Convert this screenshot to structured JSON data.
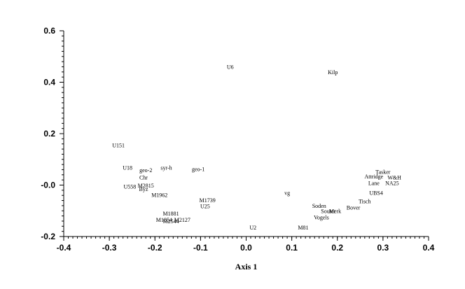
{
  "chart_data": {
    "type": "scatter",
    "title": "",
    "xlabel": "Axis 1",
    "ylabel": "",
    "xlim": [
      -0.4,
      0.4
    ],
    "ylim": [
      -0.2,
      0.6
    ],
    "x_ticks": [
      -0.4,
      -0.3,
      -0.2,
      -0.1,
      0.0,
      0.1,
      0.2,
      0.3,
      0.4
    ],
    "y_ticks": [
      -0.2,
      0.0,
      0.2,
      0.4,
      0.6
    ],
    "x_tick_labels": [
      "-0.4",
      "-0.3",
      "-0.2",
      "-0.1",
      "0.0",
      "0.1",
      "0.2",
      "0.3",
      "0.4"
    ],
    "y_tick_labels": [
      "-0.2",
      "-0.0",
      "0.2",
      "0.4",
      "0.6"
    ],
    "grid": false,
    "points": [
      {
        "label": "U6",
        "x": -0.035,
        "y": 0.46
      },
      {
        "label": "Kilp",
        "x": 0.19,
        "y": 0.44
      },
      {
        "label": "U151",
        "x": -0.28,
        "y": 0.155
      },
      {
        "label": "U18",
        "x": -0.26,
        "y": 0.068
      },
      {
        "label": "geo-2",
        "x": -0.22,
        "y": 0.058
      },
      {
        "label": "syr-h",
        "x": -0.175,
        "y": 0.068
      },
      {
        "label": "geo-1",
        "x": -0.105,
        "y": 0.062
      },
      {
        "label": "Chr",
        "x": -0.225,
        "y": 0.03
      },
      {
        "label": "U558",
        "x": -0.255,
        "y": -0.005
      },
      {
        "label": "M2815",
        "x": -0.22,
        "y": -0.001
      },
      {
        "label": "Byz",
        "x": -0.225,
        "y": -0.015
      },
      {
        "label": "M1962",
        "x": -0.19,
        "y": -0.038
      },
      {
        "label": "vg",
        "x": 0.09,
        "y": -0.03
      },
      {
        "label": "Tasker",
        "x": 0.3,
        "y": 0.052
      },
      {
        "label": "Attridge",
        "x": 0.28,
        "y": 0.034
      },
      {
        "label": "W&H",
        "x": 0.325,
        "y": 0.03
      },
      {
        "label": "Lane",
        "x": 0.28,
        "y": 0.008
      },
      {
        "label": "NA25",
        "x": 0.32,
        "y": 0.008
      },
      {
        "label": "UBS4",
        "x": 0.285,
        "y": -0.03
      },
      {
        "label": "Tisch",
        "x": 0.26,
        "y": -0.063
      },
      {
        "label": "M1739",
        "x": -0.085,
        "y": -0.058
      },
      {
        "label": "U25",
        "x": -0.09,
        "y": -0.082
      },
      {
        "label": "Soden",
        "x": 0.16,
        "y": -0.08
      },
      {
        "label": "Bover",
        "x": 0.235,
        "y": -0.087
      },
      {
        "label": "Souter",
        "x": 0.18,
        "y": -0.1
      },
      {
        "label": "Merk",
        "x": 0.195,
        "y": -0.1
      },
      {
        "label": "Vogels",
        "x": 0.165,
        "y": -0.125
      },
      {
        "label": "M1881",
        "x": -0.165,
        "y": -0.11
      },
      {
        "label": "M1854",
        "x": -0.18,
        "y": -0.135
      },
      {
        "label": "M2544",
        "x": -0.165,
        "y": -0.14
      },
      {
        "label": "M2127",
        "x": -0.14,
        "y": -0.135
      },
      {
        "label": "U2",
        "x": 0.015,
        "y": -0.165
      },
      {
        "label": "M81",
        "x": 0.125,
        "y": -0.165
      }
    ]
  }
}
